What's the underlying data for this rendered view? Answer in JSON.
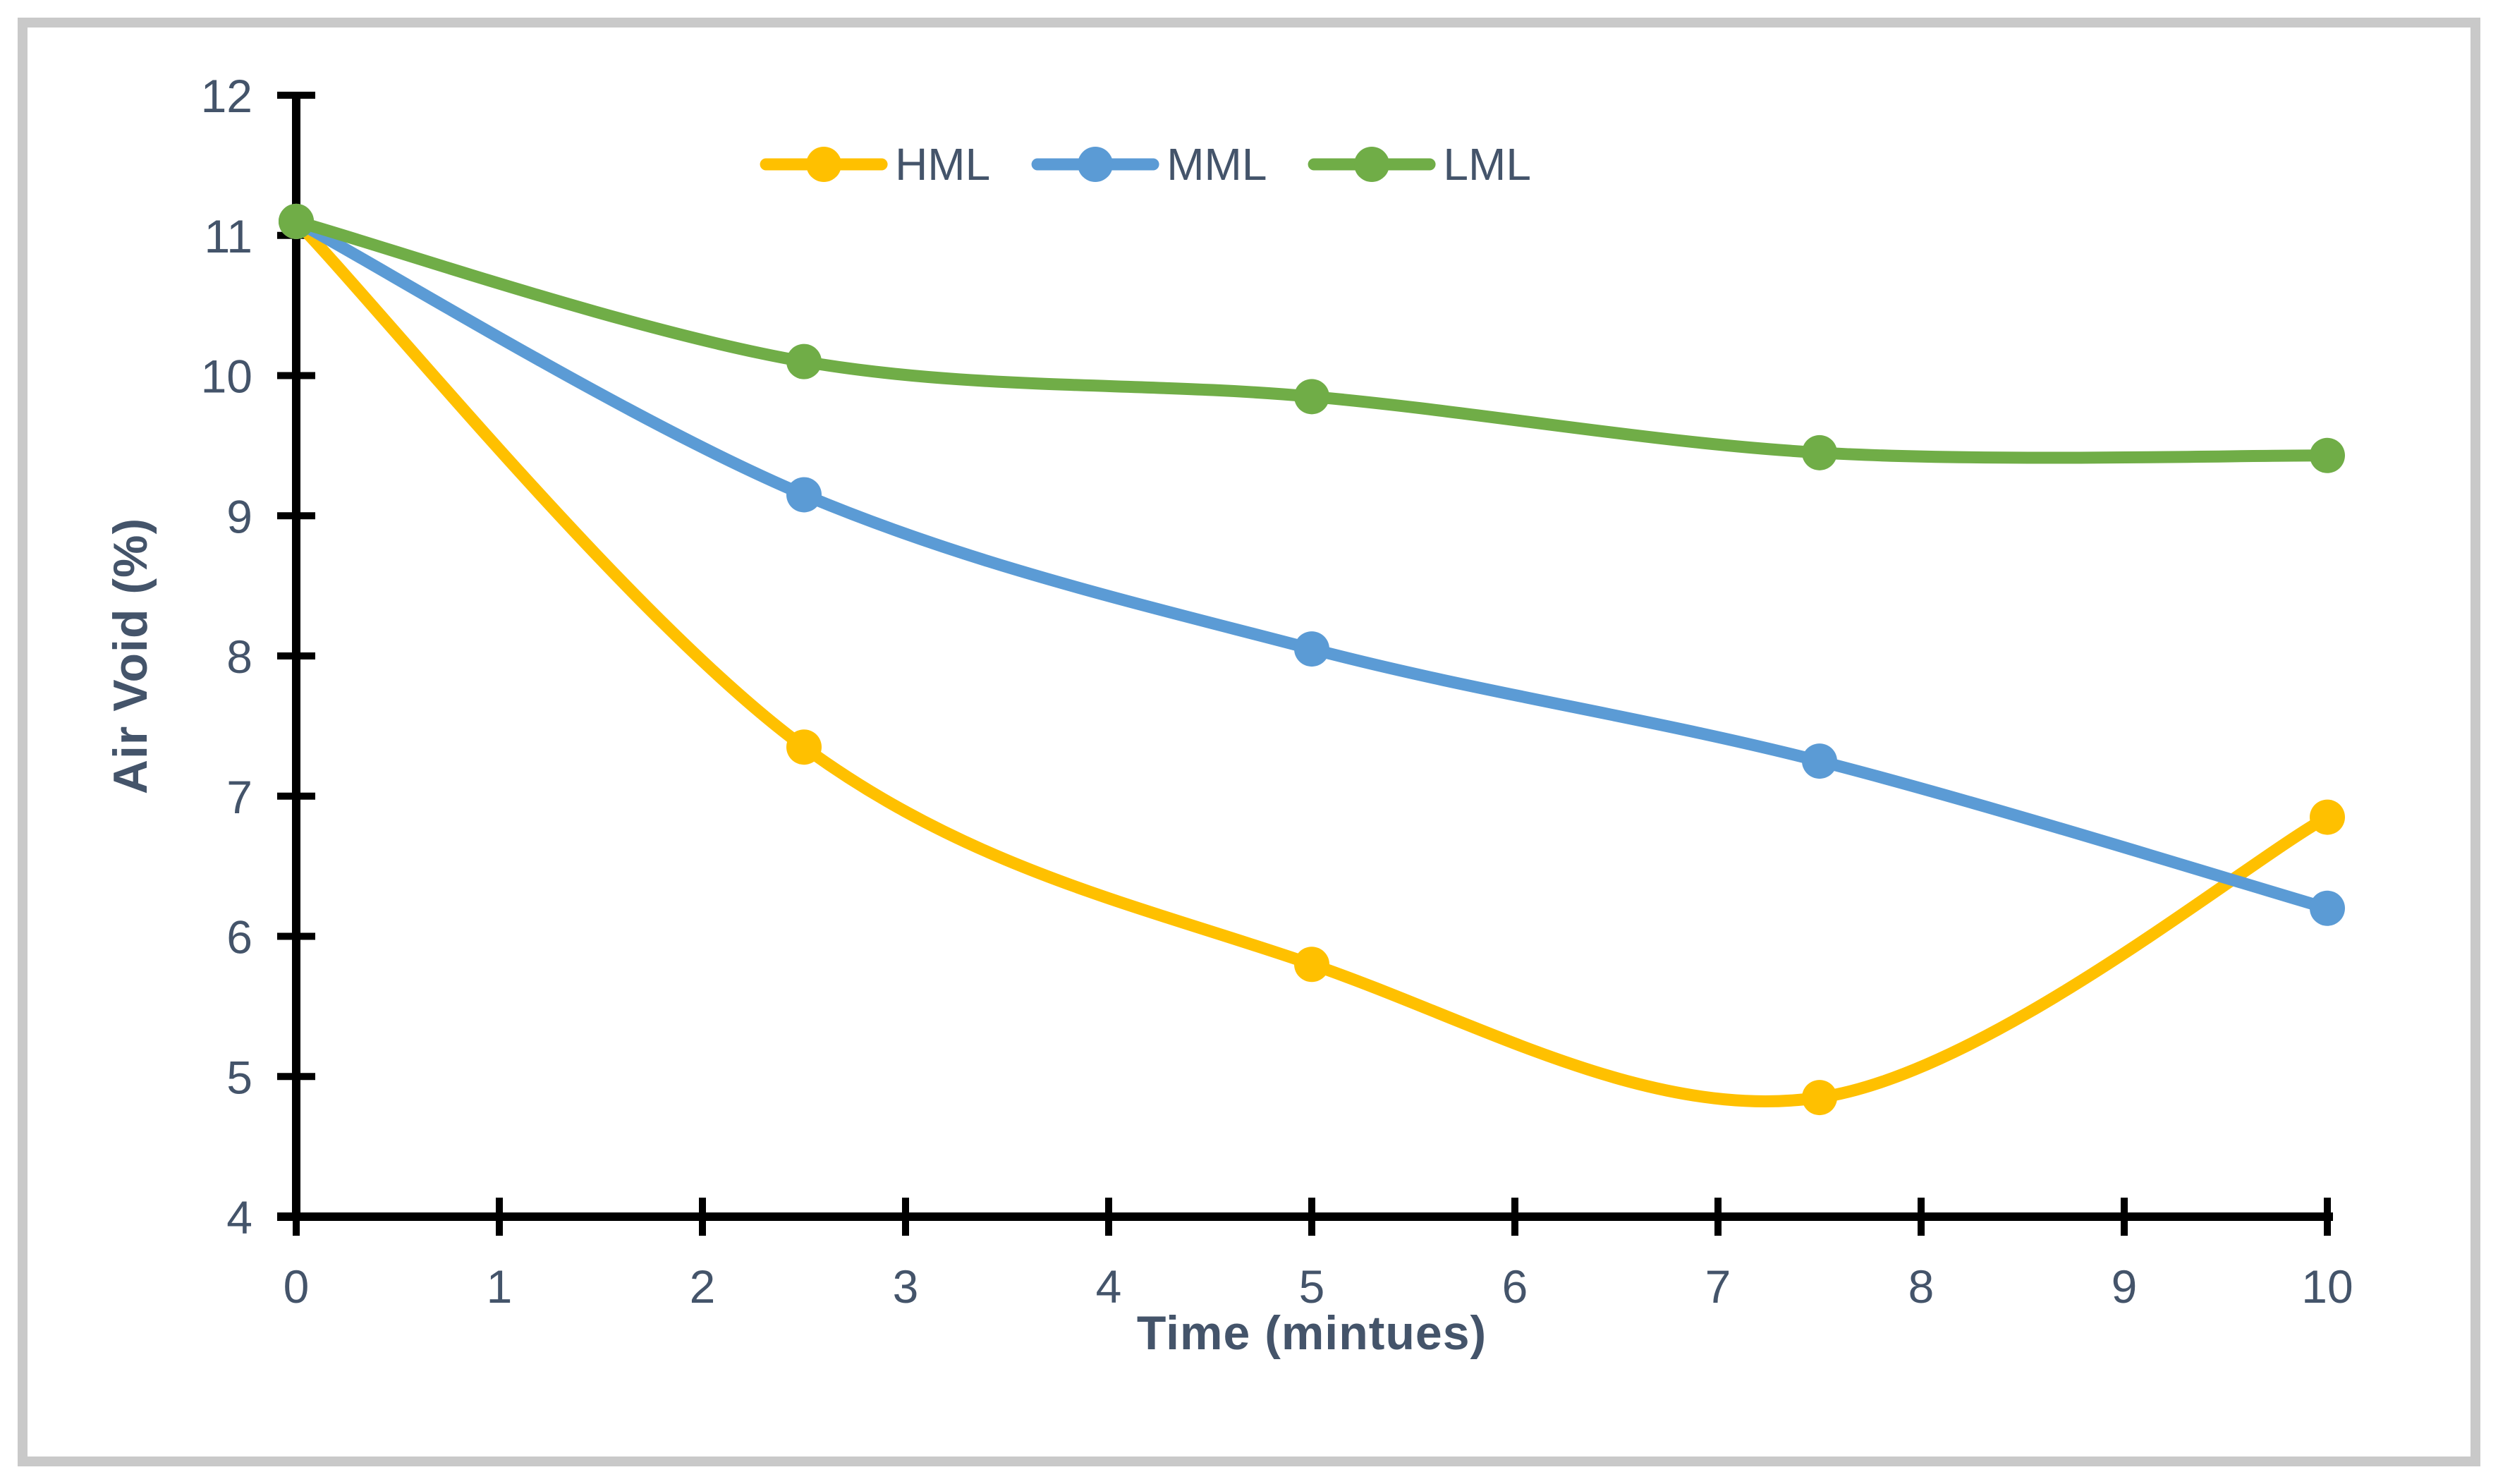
{
  "figure": {
    "background": "#ffffff",
    "border_color": "#c9c9c9"
  },
  "chart_data": {
    "type": "line",
    "title": "",
    "xlabel": "Time (mintues)",
    "ylabel": "Air Void (%)",
    "x": [
      0,
      2.5,
      5,
      7.5,
      10
    ],
    "series": [
      {
        "name": "HML",
        "color": "#FFC000",
        "values": [
          11.1,
          7.35,
          5.8,
          4.85,
          6.85
        ]
      },
      {
        "name": "MML",
        "color": "#5B9BD5",
        "values": [
          11.1,
          9.15,
          8.05,
          7.25,
          6.2
        ]
      },
      {
        "name": "LML",
        "color": "#70AD47",
        "values": [
          11.1,
          10.1,
          9.85,
          9.45,
          9.43
        ]
      }
    ],
    "xlim": [
      0,
      10
    ],
    "ylim": [
      4,
      12
    ],
    "x_ticks": [
      0,
      1,
      2,
      3,
      4,
      5,
      6,
      7,
      8,
      9,
      10
    ],
    "y_ticks": [
      4,
      5,
      6,
      7,
      8,
      9,
      10,
      11,
      12
    ],
    "grid": false,
    "smooth": true,
    "marker": "circle",
    "legend_position": "top-center",
    "axis_color": "#000000",
    "text_color": "#44546A"
  }
}
